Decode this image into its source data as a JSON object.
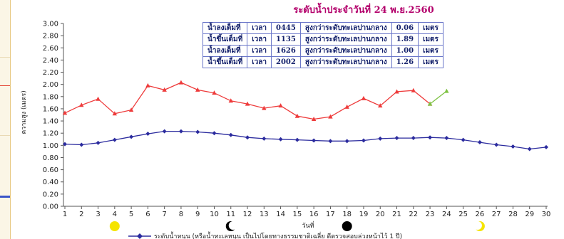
{
  "title": "ระดับน้ำประจำวันที่ 24 พ.ย.2560",
  "tide_table": [
    [
      "น้ำลงเต็มที่",
      "เวลา",
      "0445",
      "สูงกว่าระดับทะเลปานกลาง",
      "0.06",
      "เมตร"
    ],
    [
      "น้ำขึ้นเต็มที่",
      "เวลา",
      "1135",
      "สูงกว่าระดับทะเลปานกลาง",
      "1.89",
      "เมตร"
    ],
    [
      "น้ำลงเต็มที่",
      "เวลา",
      "1626",
      "สูงกว่าระดับทะเลปานกลาง",
      "1.00",
      "เมตร"
    ],
    [
      "น้ำขึ้นเต็มที่",
      "เวลา",
      "2002",
      "สูงกว่าระดับทะเลปานกลาง",
      "1.26",
      "เมตร"
    ]
  ],
  "colors": {
    "title": "#b3006b",
    "red_series": "#ee3b3b",
    "blue_series": "#2b2b9e",
    "green_segment": "#7dc242",
    "sun": "#f5e400",
    "moon": "#000000",
    "table_border": "#6b77c9",
    "table_text": "#13206b"
  },
  "legend_text": "ระดับน้ำหนุน (หรือน้ำทะเลหนุน เป็นไปโดยทางธรรมชาติเฉลี่ย ดีตรวจสอบล่วงหน้าไว้ 1 ปี)",
  "moon_phase_icons": [
    {
      "day": 4,
      "icon": "full-moon-yellow-icon"
    },
    {
      "day": 11,
      "icon": "crescent-moon-icon"
    },
    {
      "day": 18,
      "icon": "new-moon-icon"
    },
    {
      "day": 26,
      "icon": "crescent-moon-yellow-icon"
    }
  ],
  "chart_data": {
    "type": "line",
    "title": "ระดับน้ำประจำวันที่ 24 พ.ย.2560",
    "xlabel": "วันที่",
    "ylabel": "ความสูง (เมตร)",
    "x": [
      1,
      2,
      3,
      4,
      5,
      6,
      7,
      8,
      9,
      10,
      11,
      12,
      13,
      14,
      15,
      16,
      17,
      18,
      19,
      20,
      21,
      22,
      23,
      24,
      25,
      26,
      27,
      28,
      29,
      30
    ],
    "ylim": [
      0.0,
      3.0
    ],
    "yticks": [
      "0.00",
      "0.20",
      "0.40",
      "0.60",
      "0.80",
      "1.00",
      "1.20",
      "1.40",
      "1.60",
      "1.80",
      "2.00",
      "2.20",
      "2.40",
      "2.60",
      "2.80",
      "3.00"
    ],
    "grid": false,
    "series": [
      {
        "color": "#ee3b3b",
        "marker": "triangle",
        "x": [
          1,
          2,
          3,
          4,
          5,
          6,
          7,
          8,
          9,
          10,
          11,
          12,
          13,
          14,
          15,
          16,
          17,
          18,
          19,
          20,
          21,
          22,
          23
        ],
        "values": [
          1.53,
          1.66,
          1.76,
          1.52,
          1.58,
          1.98,
          1.91,
          2.03,
          1.91,
          1.86,
          1.73,
          1.68,
          1.61,
          1.65,
          1.48,
          1.43,
          1.47,
          1.63,
          1.77,
          1.65,
          1.88,
          1.9,
          1.68
        ]
      },
      {
        "color": "#7dc242",
        "marker": "triangle",
        "x": [
          23,
          24
        ],
        "values": [
          1.68,
          1.89
        ]
      },
      {
        "name": "ระดับน้ำหนุน (หรือน้ำทะเลหนุน เป็นไปโดยทางธรรมชาติเฉลี่ย ดีตรวจสอบล่วงหน้าไว้ 1 ปี)",
        "color": "#2b2b9e",
        "marker": "diamond",
        "x": [
          1,
          2,
          3,
          4,
          5,
          6,
          7,
          8,
          9,
          10,
          11,
          12,
          13,
          14,
          15,
          16,
          17,
          18,
          19,
          20,
          21,
          22,
          23,
          24,
          25,
          26,
          27,
          28,
          29,
          30
        ],
        "values": [
          1.02,
          1.01,
          1.04,
          1.09,
          1.14,
          1.19,
          1.23,
          1.23,
          1.22,
          1.2,
          1.17,
          1.13,
          1.11,
          1.1,
          1.09,
          1.08,
          1.07,
          1.07,
          1.08,
          1.11,
          1.12,
          1.12,
          1.13,
          1.12,
          1.09,
          1.05,
          1.01,
          0.98,
          0.94,
          0.97
        ]
      }
    ]
  }
}
